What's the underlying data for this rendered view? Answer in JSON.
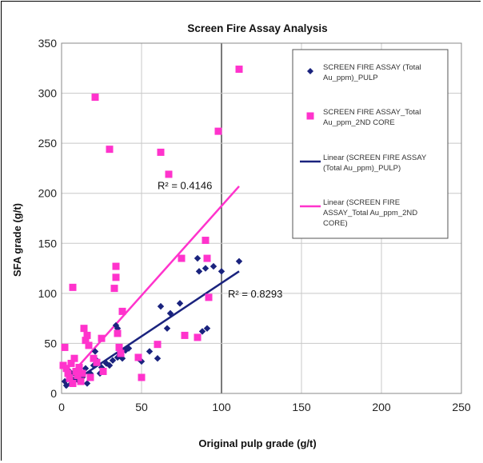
{
  "chart_data": {
    "type": "scatter",
    "title": "Screen Fire Assay Analysis",
    "xlabel": "Original  pulp grade (g/t)",
    "ylabel": "SFA grade (g/t)",
    "xlim": [
      0,
      250
    ],
    "ylim": [
      0,
      350
    ],
    "xticks": [
      0,
      50,
      100,
      150,
      200,
      250
    ],
    "yticks": [
      0,
      50,
      100,
      150,
      200,
      250,
      300,
      350
    ],
    "grid": true,
    "legend_position": "top-right",
    "colors": {
      "pulp": "#1a237e",
      "core": "#ff33cc"
    },
    "series": [
      {
        "name": "SCREEN FIRE ASSAY (Total Au_ppm)_PULP",
        "legend_lines": [
          "SCREEN FIRE ASSAY (Total",
          "Au_ppm)_PULP"
        ],
        "marker": "diamond",
        "color": "#1a237e",
        "points": [
          [
            2,
            12
          ],
          [
            3,
            8
          ],
          [
            4,
            18
          ],
          [
            5,
            22
          ],
          [
            6,
            10
          ],
          [
            7,
            14
          ],
          [
            8,
            20
          ],
          [
            9,
            15
          ],
          [
            10,
            18
          ],
          [
            11,
            12
          ],
          [
            12,
            22
          ],
          [
            13,
            16
          ],
          [
            15,
            25
          ],
          [
            16,
            10
          ],
          [
            18,
            20
          ],
          [
            20,
            28
          ],
          [
            21,
            42
          ],
          [
            22,
            33
          ],
          [
            24,
            20
          ],
          [
            25,
            26
          ],
          [
            28,
            30
          ],
          [
            30,
            28
          ],
          [
            32,
            33
          ],
          [
            34,
            68
          ],
          [
            35,
            65
          ],
          [
            35,
            36
          ],
          [
            36,
            40
          ],
          [
            38,
            35
          ],
          [
            40,
            43
          ],
          [
            42,
            45
          ],
          [
            48,
            35
          ],
          [
            50,
            32
          ],
          [
            55,
            42
          ],
          [
            60,
            35
          ],
          [
            62,
            87
          ],
          [
            66,
            65
          ],
          [
            68,
            80
          ],
          [
            74,
            90
          ],
          [
            85,
            135
          ],
          [
            86,
            122
          ],
          [
            88,
            62
          ],
          [
            90,
            125
          ],
          [
            91,
            65
          ],
          [
            95,
            127
          ],
          [
            100,
            122
          ],
          [
            111,
            132
          ]
        ]
      },
      {
        "name": "SCREEN FIRE ASSAY_Total Au_ppm_2ND CORE",
        "legend_lines": [
          "SCREEN FIRE ASSAY_Total",
          "Au_ppm_2ND CORE"
        ],
        "marker": "square",
        "color": "#ff33cc",
        "points": [
          [
            1,
            28
          ],
          [
            2,
            46
          ],
          [
            3,
            25
          ],
          [
            4,
            20
          ],
          [
            5,
            15
          ],
          [
            6,
            30
          ],
          [
            7,
            106
          ],
          [
            7,
            10
          ],
          [
            8,
            35
          ],
          [
            9,
            22
          ],
          [
            10,
            18
          ],
          [
            11,
            26
          ],
          [
            12,
            12
          ],
          [
            13,
            20
          ],
          [
            14,
            65
          ],
          [
            15,
            53
          ],
          [
            16,
            58
          ],
          [
            17,
            48
          ],
          [
            18,
            16
          ],
          [
            20,
            35
          ],
          [
            21,
            296
          ],
          [
            22,
            31
          ],
          [
            25,
            55
          ],
          [
            26,
            22
          ],
          [
            30,
            244
          ],
          [
            33,
            105
          ],
          [
            34,
            127
          ],
          [
            34,
            116
          ],
          [
            35,
            60
          ],
          [
            36,
            46
          ],
          [
            37,
            40
          ],
          [
            38,
            82
          ],
          [
            48,
            36
          ],
          [
            50,
            16
          ],
          [
            60,
            49
          ],
          [
            62,
            241
          ],
          [
            67,
            219
          ],
          [
            75,
            135
          ],
          [
            77,
            58
          ],
          [
            85,
            56
          ],
          [
            90,
            153
          ],
          [
            91,
            135
          ],
          [
            92,
            96
          ],
          [
            98,
            262
          ],
          [
            111,
            324
          ]
        ]
      },
      {
        "name": "Linear (SCREEN FIRE ASSAY (Total Au_ppm)_PULP)",
        "legend_lines": [
          "Linear (SCREEN FIRE ASSAY",
          "(Total Au_ppm)_PULP)"
        ],
        "kind": "trendline",
        "color": "#1a237e",
        "from": [
          2,
          6
        ],
        "to": [
          111,
          122
        ],
        "r_squared_label": "R² = 0.8293"
      },
      {
        "name": "Linear (SCREEN FIRE ASSAY_Total Au_ppm_2ND CORE)",
        "legend_lines": [
          "Linear (SCREEN FIRE",
          "ASSAY_Total Au_ppm_2ND",
          "CORE)"
        ],
        "kind": "trendline",
        "color": "#ff33cc",
        "from": [
          2,
          12
        ],
        "to": [
          111,
          207
        ],
        "r_squared_label": "R² = 0.4146"
      }
    ]
  }
}
